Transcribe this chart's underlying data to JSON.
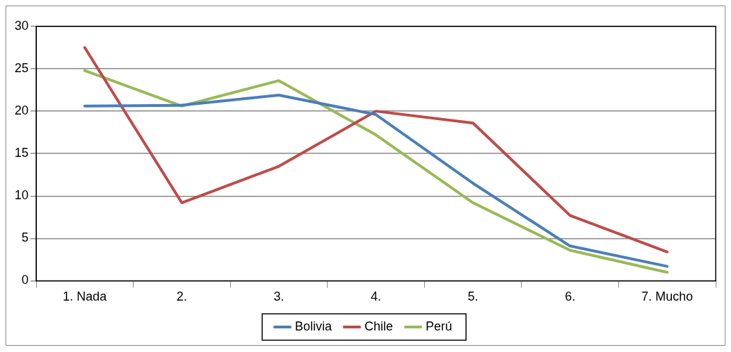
{
  "chart_data": {
    "type": "line",
    "categories": [
      "1. Nada",
      "2.",
      "3.",
      "4.",
      "5.",
      "6.",
      "7. Mucho"
    ],
    "series": [
      {
        "name": "Bolivia",
        "color": "#4a7ebb",
        "values": [
          20.6,
          20.7,
          21.9,
          19.6,
          11.5,
          4.1,
          1.7
        ]
      },
      {
        "name": "Chile",
        "color": "#be4b48",
        "values": [
          27.5,
          9.2,
          13.5,
          20.0,
          18.6,
          7.7,
          3.4
        ]
      },
      {
        "name": "Perú",
        "color": "#98b954",
        "values": [
          24.8,
          20.6,
          23.6,
          17.2,
          9.2,
          3.6,
          1.0
        ]
      }
    ],
    "ylim": [
      0,
      30
    ],
    "yticks": [
      0,
      5,
      10,
      15,
      20,
      25,
      30
    ],
    "grid": "y",
    "legend": "bottom",
    "marker": "none",
    "line_style": "solid"
  }
}
